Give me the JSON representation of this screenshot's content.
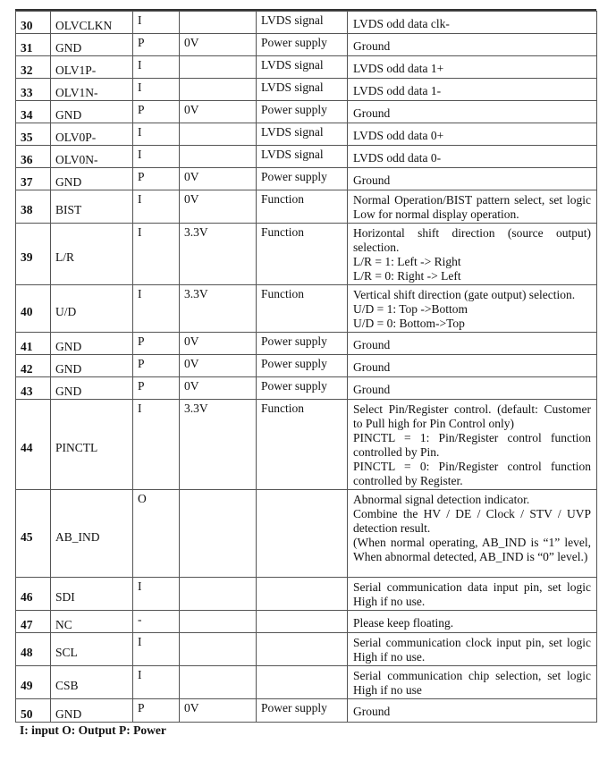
{
  "columns_hint": [],
  "rows": [
    {
      "pin": "30",
      "name": "OLVCLKN",
      "type": "I",
      "voltage": "",
      "func": "LVDS signal",
      "desc": [
        "LVDS odd data clk-"
      ]
    },
    {
      "pin": "31",
      "name": "GND",
      "type": "P",
      "voltage": "0V",
      "func": "Power supply",
      "desc": [
        "Ground"
      ]
    },
    {
      "pin": "32",
      "name": "OLV1P-",
      "type": "I",
      "voltage": "",
      "func": "LVDS signal",
      "desc": [
        "LVDS odd data 1+"
      ]
    },
    {
      "pin": "33",
      "name": "OLV1N-",
      "type": "I",
      "voltage": "",
      "func": "LVDS signal",
      "desc": [
        "LVDS odd data 1-"
      ]
    },
    {
      "pin": "34",
      "name": "GND",
      "type": "P",
      "voltage": "0V",
      "func": "Power supply",
      "desc": [
        "Ground"
      ]
    },
    {
      "pin": "35",
      "name": "OLV0P-",
      "type": "I",
      "voltage": "",
      "func": "LVDS signal",
      "desc": [
        "LVDS odd data 0+"
      ]
    },
    {
      "pin": "36",
      "name": "OLV0N-",
      "type": "I",
      "voltage": "",
      "func": "LVDS signal",
      "desc": [
        "LVDS odd data 0-"
      ]
    },
    {
      "pin": "37",
      "name": "GND",
      "type": "P",
      "voltage": "0V",
      "func": "Power supply",
      "desc": [
        "Ground"
      ]
    },
    {
      "pin": "38",
      "name": "BIST",
      "type": "I",
      "voltage": "0V",
      "func": "Function",
      "desc": [
        "Normal Operation/BIST pattern select, set logic Low for normal display operation."
      ]
    },
    {
      "pin": "39",
      "name": "L/R",
      "type": "I",
      "voltage": "3.3V",
      "func": "Function",
      "desc": [
        "Horizontal shift direction (source output) selection.",
        "L/R = 1: Left -> Right",
        "L/R = 0: Right -> Left"
      ]
    },
    {
      "pin": "40",
      "name": "U/D",
      "type": "I",
      "voltage": "3.3V",
      "func": "Function",
      "desc": [
        "Vertical shift direction (gate output) selection.",
        "U/D = 1: Top ->Bottom",
        "U/D = 0: Bottom->Top"
      ]
    },
    {
      "pin": "41",
      "name": "GND",
      "type": "P",
      "voltage": "0V",
      "func": "Power supply",
      "desc": [
        "Ground"
      ]
    },
    {
      "pin": "42",
      "name": "GND",
      "type": "P",
      "voltage": "0V",
      "func": "Power supply",
      "desc": [
        "Ground"
      ]
    },
    {
      "pin": "43",
      "name": "GND",
      "type": "P",
      "voltage": "0V",
      "func": "Power supply",
      "desc": [
        "Ground"
      ]
    },
    {
      "pin": "44",
      "name": "PINCTL",
      "type": "I",
      "voltage": "3.3V",
      "func": "Function",
      "desc": [
        "Select Pin/Register control. (default: Customer to Pull high for Pin Control only)",
        "PINCTL = 1: Pin/Register control function controlled by Pin.",
        "PINCTL = 0: Pin/Register control function controlled by Register."
      ]
    },
    {
      "pin": "45",
      "name": "AB_IND",
      "type": "O",
      "voltage": "",
      "func": "",
      "desc": [
        "Abnormal signal detection indicator.",
        "Combine the HV / DE / Clock / STV / UVP detection result.",
        "(When normal operating, AB_IND is “1” level, When abnormal detected, AB_IND is “0” level.)"
      ]
    },
    {
      "pin": "46",
      "name": "SDI",
      "type": "I",
      "voltage": "",
      "func": "",
      "desc": [
        "Serial communication data input pin, set logic High if no use."
      ]
    },
    {
      "pin": "47",
      "name": "NC",
      "type": "-",
      "voltage": "",
      "func": "",
      "desc": [
        "Please keep floating."
      ]
    },
    {
      "pin": "48",
      "name": "SCL",
      "type": "I",
      "voltage": "",
      "func": "",
      "desc": [
        "Serial communication clock input pin, set logic High if no use."
      ]
    },
    {
      "pin": "49",
      "name": "CSB",
      "type": "I",
      "voltage": "",
      "func": "",
      "desc": [
        "Serial communication chip selection, set logic High if no use"
      ]
    },
    {
      "pin": "50",
      "name": "GND",
      "type": "P",
      "voltage": "0V",
      "func": "Power supply",
      "desc": [
        "Ground"
      ]
    }
  ],
  "legend": "I: input O: Output P: Power"
}
